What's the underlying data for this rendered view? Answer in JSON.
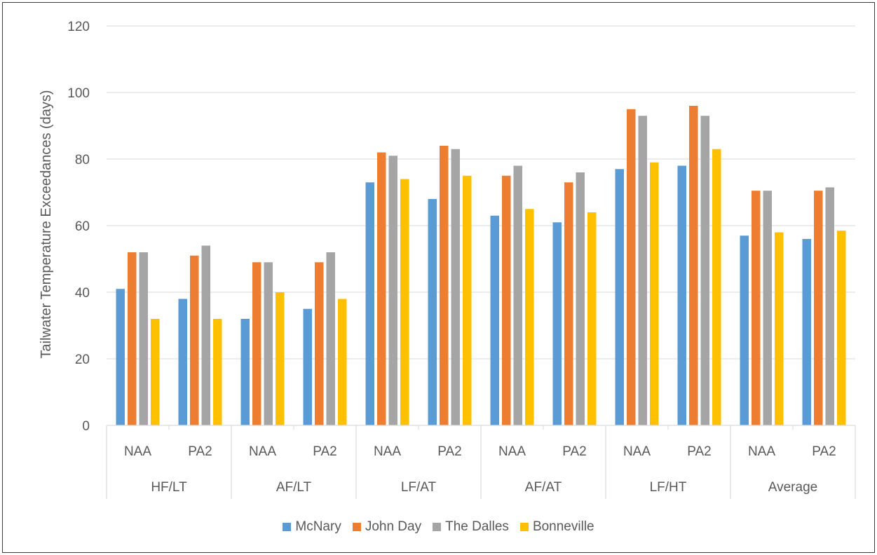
{
  "chart_data": {
    "type": "bar",
    "title": "",
    "ylabel": "Tailwater Temperature Exceedances (days)",
    "xlabel": "",
    "ylim": [
      0,
      120
    ],
    "yticks": [
      0,
      20,
      40,
      60,
      80,
      100,
      120
    ],
    "grid": true,
    "legend_position": "bottom",
    "groups": [
      {
        "label": "HF/LT",
        "categories": [
          "NAA",
          "PA2"
        ]
      },
      {
        "label": "AF/LT",
        "categories": [
          "NAA",
          "PA2"
        ]
      },
      {
        "label": "LF/AT",
        "categories": [
          "NAA",
          "PA2"
        ]
      },
      {
        "label": "AF/AT",
        "categories": [
          "NAA",
          "PA2"
        ]
      },
      {
        "label": "LF/HT",
        "categories": [
          "NAA",
          "PA2"
        ]
      },
      {
        "label": "Average",
        "categories": [
          "NAA",
          "PA2"
        ]
      }
    ],
    "categories": [
      "NAA",
      "PA2",
      "NAA",
      "PA2",
      "NAA",
      "PA2",
      "NAA",
      "PA2",
      "NAA",
      "PA2",
      "NAA",
      "PA2"
    ],
    "series": [
      {
        "name": "McNary",
        "color": "#5b9bd5",
        "values": [
          41,
          38,
          32,
          35,
          73,
          68,
          63,
          61,
          77,
          78,
          57,
          56
        ]
      },
      {
        "name": "John Day",
        "color": "#ed7d31",
        "values": [
          52,
          51,
          49,
          49,
          82,
          84,
          75,
          73,
          95,
          96,
          70.5,
          70.5
        ]
      },
      {
        "name": "The Dalles",
        "color": "#a5a5a5",
        "values": [
          52,
          54,
          49,
          52,
          81,
          83,
          78,
          76,
          93,
          93,
          70.5,
          71.5
        ]
      },
      {
        "name": "Bonneville",
        "color": "#ffc000",
        "values": [
          32,
          32,
          40,
          38,
          74,
          75,
          65,
          64,
          79,
          83,
          58,
          58.5
        ]
      }
    ]
  }
}
